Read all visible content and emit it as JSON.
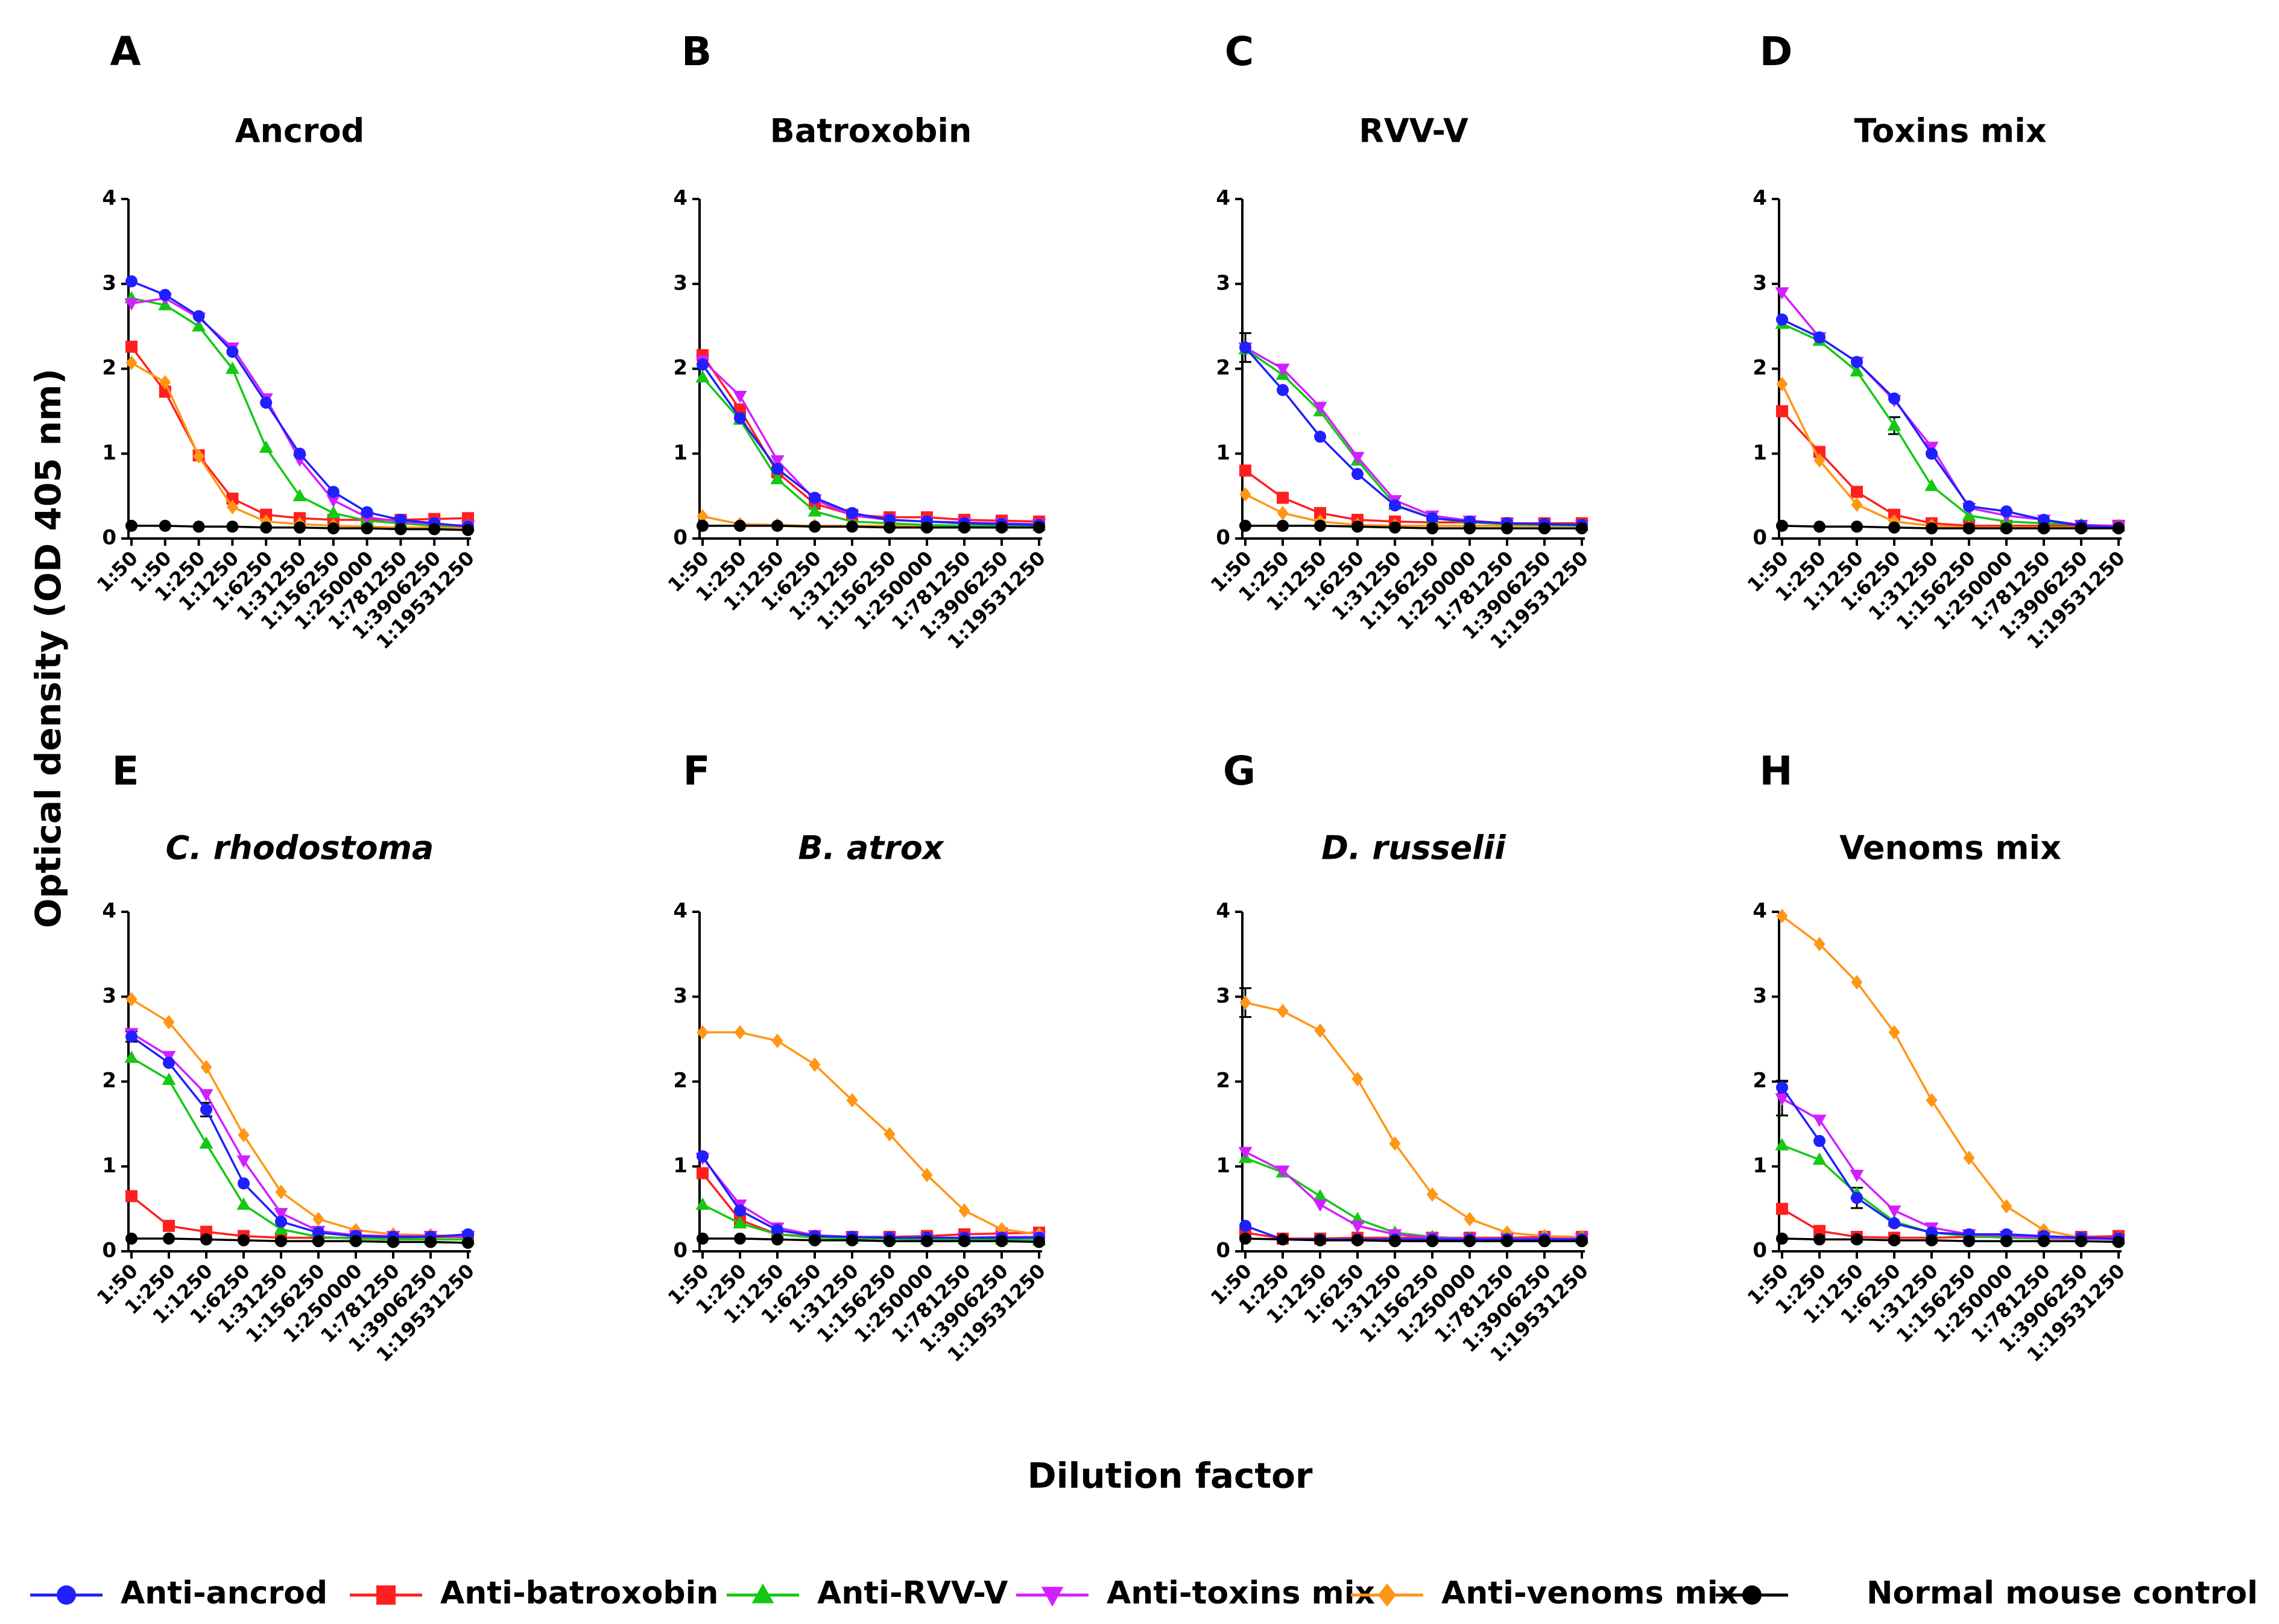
{
  "chart_data": {
    "type": "line",
    "y_axis_title": "Optical density (OD 405 nm)",
    "x_axis_title": "Dilution factor",
    "ylim": [
      0,
      4
    ],
    "yticks": [
      "0",
      "1",
      "2",
      "3",
      "4"
    ],
    "legend_placement": "bottom",
    "series_styles": [
      {
        "key": "anti_ancrod",
        "name": "Anti-ancrod",
        "color": "#1f1fff",
        "marker": "circle"
      },
      {
        "key": "anti_batroxobin",
        "name": "Anti-batroxobin",
        "color": "#ff1f1f",
        "marker": "square"
      },
      {
        "key": "anti_rvvv",
        "name": "Anti-RVV-V",
        "color": "#14c814",
        "marker": "triangle-up"
      },
      {
        "key": "anti_toxins_mix",
        "name": "Anti-toxins mix",
        "color": "#d21fff",
        "marker": "triangle-down"
      },
      {
        "key": "anti_venoms_mix",
        "name": "Anti-venoms mix",
        "color": "#ff9614",
        "marker": "diamond"
      },
      {
        "key": "normal_mouse",
        "name": "Normal mouse control",
        "color": "#000000",
        "marker": "circle"
      }
    ],
    "panels": [
      {
        "letter": "A",
        "title": "Ancrod",
        "italic": false,
        "categories": [
          "1:50",
          "1:50",
          "1:250",
          "1:1250",
          "1:6250",
          "1:31250",
          "1:156250",
          "1:250000",
          "1:781250",
          "1:3906250",
          "1:19531250"
        ],
        "series": {
          "anti_ancrod": [
            3.03,
            2.87,
            2.62,
            2.2,
            1.6,
            1.0,
            0.55,
            0.31,
            0.22,
            0.18,
            0.14
          ],
          "anti_batroxobin": [
            2.26,
            1.73,
            0.98,
            0.47,
            0.28,
            0.24,
            0.22,
            0.22,
            0.22,
            0.23,
            0.24
          ],
          "anti_rvvv": [
            2.83,
            2.75,
            2.5,
            2.0,
            1.07,
            0.5,
            0.3,
            0.21,
            0.18,
            0.15,
            0.15
          ],
          "anti_toxins_mix": [
            2.77,
            2.83,
            2.6,
            2.25,
            1.65,
            0.93,
            0.45,
            0.25,
            0.2,
            0.17,
            0.15
          ],
          "anti_venoms_mix": [
            2.07,
            1.84,
            0.97,
            0.37,
            0.2,
            0.17,
            0.15,
            0.14,
            0.13,
            0.13,
            0.13
          ],
          "normal_mouse": [
            0.15,
            0.15,
            0.14,
            0.14,
            0.13,
            0.13,
            0.12,
            0.12,
            0.11,
            0.11,
            0.1
          ]
        },
        "errors": []
      },
      {
        "letter": "B",
        "title": "Batroxobin",
        "italic": false,
        "categories": [
          "1:50",
          "1:250",
          "1:1250",
          "1:6250",
          "1:31250",
          "1:156250",
          "1:250000",
          "1:781250",
          "1:3906250",
          "1:19531250"
        ],
        "series": {
          "anti_ancrod": [
            2.05,
            1.42,
            0.82,
            0.48,
            0.3,
            0.22,
            0.2,
            0.18,
            0.17,
            0.16
          ],
          "anti_batroxobin": [
            2.16,
            1.52,
            0.78,
            0.41,
            0.28,
            0.25,
            0.25,
            0.22,
            0.21,
            0.2
          ],
          "anti_rvvv": [
            1.9,
            1.4,
            0.7,
            0.32,
            0.2,
            0.18,
            0.16,
            0.15,
            0.15,
            0.15
          ],
          "anti_toxins_mix": [
            2.1,
            1.68,
            0.92,
            0.46,
            0.27,
            0.22,
            0.2,
            0.19,
            0.18,
            0.17
          ],
          "anti_venoms_mix": [
            0.26,
            0.17,
            0.16,
            0.15,
            0.15,
            0.15,
            0.15,
            0.15,
            0.15,
            0.15
          ],
          "normal_mouse": [
            0.15,
            0.15,
            0.15,
            0.14,
            0.14,
            0.13,
            0.13,
            0.13,
            0.13,
            0.13
          ]
        },
        "errors": []
      },
      {
        "letter": "C",
        "title": "RVV-V",
        "italic": false,
        "categories": [
          "1:50",
          "1:250",
          "1:1250",
          "1:6250",
          "1:31250",
          "1:156250",
          "1:250000",
          "1:781250",
          "1:3906250",
          "1:19531250"
        ],
        "series": {
          "anti_ancrod": [
            2.25,
            1.75,
            1.2,
            0.76,
            0.39,
            0.24,
            0.2,
            0.18,
            0.17,
            0.16
          ],
          "anti_batroxobin": [
            0.8,
            0.48,
            0.3,
            0.22,
            0.2,
            0.19,
            0.19,
            0.18,
            0.18,
            0.18
          ],
          "anti_rvvv": [
            2.23,
            1.93,
            1.5,
            0.92,
            0.4,
            0.24,
            0.19,
            0.17,
            0.16,
            0.15
          ],
          "anti_toxins_mix": [
            2.25,
            2.0,
            1.55,
            0.96,
            0.45,
            0.27,
            0.21,
            0.18,
            0.17,
            0.16
          ],
          "anti_venoms_mix": [
            0.52,
            0.3,
            0.2,
            0.16,
            0.15,
            0.15,
            0.15,
            0.15,
            0.15,
            0.15
          ],
          "normal_mouse": [
            0.15,
            0.15,
            0.15,
            0.14,
            0.13,
            0.12,
            0.12,
            0.12,
            0.12,
            0.12
          ]
        },
        "errors": [
          {
            "series": "anti_ancrod",
            "index": 0,
            "err": 0.17
          }
        ]
      },
      {
        "letter": "D",
        "title": "Toxins mix",
        "italic": false,
        "categories": [
          "1:50",
          "1:250",
          "1:1250",
          "1:6250",
          "1:31250",
          "1:156250",
          "1:250000",
          "1:781250",
          "1:3906250",
          "1:19531250"
        ],
        "series": {
          "anti_ancrod": [
            2.58,
            2.37,
            2.08,
            1.65,
            1.0,
            0.38,
            0.32,
            0.22,
            0.15,
            0.13
          ],
          "anti_batroxobin": [
            1.5,
            1.02,
            0.55,
            0.28,
            0.18,
            0.15,
            0.15,
            0.15,
            0.15,
            0.15
          ],
          "anti_rvvv": [
            2.53,
            2.33,
            1.97,
            1.33,
            0.62,
            0.27,
            0.2,
            0.18,
            0.16,
            0.15
          ],
          "anti_toxins_mix": [
            2.9,
            2.37,
            2.08,
            1.63,
            1.08,
            0.36,
            0.27,
            0.22,
            0.16,
            0.15
          ],
          "anti_venoms_mix": [
            1.82,
            0.92,
            0.4,
            0.2,
            0.15,
            0.13,
            0.13,
            0.13,
            0.13,
            0.13
          ],
          "normal_mouse": [
            0.15,
            0.14,
            0.14,
            0.13,
            0.12,
            0.12,
            0.12,
            0.12,
            0.12,
            0.12
          ]
        },
        "errors": [
          {
            "series": "anti_rvvv",
            "index": 3,
            "err": 0.1
          }
        ]
      },
      {
        "letter": "E",
        "title": "C. rhodostoma",
        "italic": true,
        "categories": [
          "1:50",
          "1:250",
          "1:1250",
          "1:6250",
          "1:31250",
          "1:156250",
          "1:250000",
          "1:781250",
          "1:3906250",
          "1:19531250"
        ],
        "series": {
          "anti_ancrod": [
            2.53,
            2.22,
            1.67,
            0.8,
            0.35,
            0.22,
            0.18,
            0.17,
            0.17,
            0.2
          ],
          "anti_batroxobin": [
            0.65,
            0.3,
            0.23,
            0.18,
            0.16,
            0.16,
            0.16,
            0.16,
            0.17,
            0.17
          ],
          "anti_rvvv": [
            2.28,
            2.02,
            1.27,
            0.55,
            0.26,
            0.17,
            0.15,
            0.14,
            0.14,
            0.14
          ],
          "anti_toxins_mix": [
            2.57,
            2.3,
            1.85,
            1.07,
            0.45,
            0.24,
            0.19,
            0.18,
            0.18,
            0.18
          ],
          "anti_venoms_mix": [
            2.97,
            2.7,
            2.17,
            1.37,
            0.7,
            0.38,
            0.25,
            0.2,
            0.19,
            0.18
          ],
          "normal_mouse": [
            0.15,
            0.15,
            0.14,
            0.13,
            0.12,
            0.12,
            0.12,
            0.11,
            0.11,
            0.1
          ]
        },
        "errors": [
          {
            "series": "anti_ancrod",
            "index": 0,
            "err": 0.06
          },
          {
            "series": "anti_ancrod",
            "index": 2,
            "err": 0.08
          }
        ]
      },
      {
        "letter": "F",
        "title": "B. atrox",
        "italic": true,
        "categories": [
          "1:50",
          "1:250",
          "1:1250",
          "1:6250",
          "1:31250",
          "1:156250",
          "1:250000",
          "1:781250",
          "1:3906250",
          "1:19531250"
        ],
        "series": {
          "anti_ancrod": [
            1.12,
            0.48,
            0.25,
            0.18,
            0.17,
            0.16,
            0.16,
            0.16,
            0.16,
            0.16
          ],
          "anti_batroxobin": [
            0.92,
            0.37,
            0.2,
            0.17,
            0.17,
            0.17,
            0.18,
            0.2,
            0.21,
            0.22
          ],
          "anti_rvvv": [
            0.55,
            0.33,
            0.2,
            0.16,
            0.15,
            0.15,
            0.14,
            0.14,
            0.14,
            0.13
          ],
          "anti_toxins_mix": [
            1.1,
            0.55,
            0.28,
            0.19,
            0.17,
            0.16,
            0.16,
            0.16,
            0.17,
            0.17
          ],
          "anti_venoms_mix": [
            2.58,
            2.58,
            2.48,
            2.2,
            1.78,
            1.38,
            0.9,
            0.48,
            0.26,
            0.2
          ],
          "normal_mouse": [
            0.15,
            0.15,
            0.14,
            0.13,
            0.13,
            0.12,
            0.12,
            0.12,
            0.12,
            0.11
          ]
        },
        "errors": []
      },
      {
        "letter": "G",
        "title": "D. russelii",
        "italic": true,
        "categories": [
          "1:50",
          "1:250",
          "1:1250",
          "1:6250",
          "1:31250",
          "1:156250",
          "1:250000",
          "1:781250",
          "1:3906250",
          "1:19531250"
        ],
        "series": {
          "anti_ancrod": [
            0.3,
            0.14,
            0.14,
            0.14,
            0.14,
            0.14,
            0.14,
            0.14,
            0.14,
            0.14
          ],
          "anti_batroxobin": [
            0.22,
            0.15,
            0.15,
            0.16,
            0.16,
            0.16,
            0.16,
            0.16,
            0.17,
            0.17
          ],
          "anti_rvvv": [
            1.1,
            0.93,
            0.65,
            0.38,
            0.22,
            0.17,
            0.15,
            0.15,
            0.15,
            0.15
          ],
          "anti_toxins_mix": [
            1.17,
            0.95,
            0.55,
            0.3,
            0.2,
            0.16,
            0.15,
            0.15,
            0.15,
            0.15
          ],
          "anti_venoms_mix": [
            2.93,
            2.83,
            2.6,
            2.03,
            1.27,
            0.67,
            0.38,
            0.22,
            0.18,
            0.17
          ],
          "normal_mouse": [
            0.15,
            0.14,
            0.13,
            0.13,
            0.12,
            0.12,
            0.12,
            0.12,
            0.12,
            0.12
          ]
        },
        "errors": [
          {
            "series": "anti_venoms_mix",
            "index": 0,
            "err": 0.17
          }
        ]
      },
      {
        "letter": "H",
        "title": "Venoms mix",
        "italic": false,
        "categories": [
          "1:50",
          "1:250",
          "1:1250",
          "1:6250",
          "1:31250",
          "1:156250",
          "1:250000",
          "1:781250",
          "1:3906250",
          "1:19531250"
        ],
        "series": {
          "anti_ancrod": [
            1.93,
            1.3,
            0.63,
            0.33,
            0.22,
            0.2,
            0.2,
            0.18,
            0.16,
            0.15
          ],
          "anti_batroxobin": [
            0.5,
            0.24,
            0.17,
            0.16,
            0.16,
            0.17,
            0.17,
            0.17,
            0.17,
            0.18
          ],
          "anti_rvvv": [
            1.25,
            1.08,
            0.68,
            0.35,
            0.22,
            0.18,
            0.16,
            0.15,
            0.15,
            0.14
          ],
          "anti_toxins_mix": [
            1.8,
            1.55,
            0.9,
            0.48,
            0.28,
            0.2,
            0.18,
            0.16,
            0.15,
            0.14
          ],
          "anti_venoms_mix": [
            3.95,
            3.62,
            3.17,
            2.58,
            1.78,
            1.1,
            0.53,
            0.25,
            0.16,
            0.15
          ],
          "normal_mouse": [
            0.15,
            0.14,
            0.14,
            0.13,
            0.13,
            0.12,
            0.12,
            0.12,
            0.12,
            0.11
          ]
        },
        "errors": [
          {
            "series": "anti_ancrod",
            "index": 0,
            "err": 0.08
          },
          {
            "series": "anti_toxins_mix",
            "index": 0,
            "err": 0.2
          },
          {
            "series": "anti_ancrod",
            "index": 2,
            "err": 0.12
          }
        ]
      }
    ]
  }
}
